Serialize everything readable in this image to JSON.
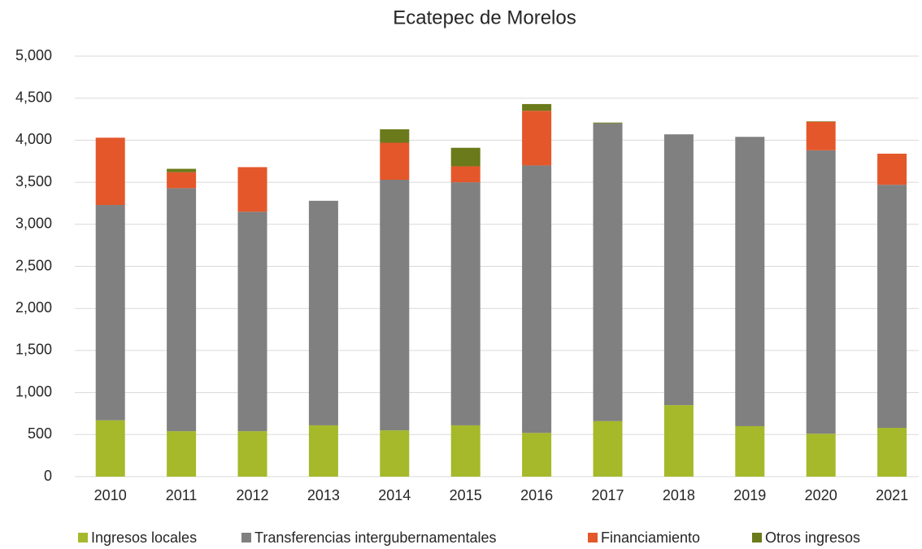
{
  "chart_data": {
    "type": "stacked_bar",
    "title": "Ecatepec de Morelos",
    "categories": [
      "2010",
      "2011",
      "2012",
      "2013",
      "2014",
      "2015",
      "2016",
      "2017",
      "2018",
      "2019",
      "2020",
      "2021"
    ],
    "series": [
      {
        "name": "Ingresos locales",
        "color": "#a5b92a",
        "values": [
          670,
          540,
          540,
          610,
          550,
          610,
          520,
          660,
          850,
          600,
          510,
          580
        ]
      },
      {
        "name": "Transferencias intergubernamentales",
        "color": "#808080",
        "values": [
          2560,
          2890,
          2610,
          2670,
          2980,
          2890,
          3180,
          3540,
          3220,
          3440,
          3370,
          2890
        ]
      },
      {
        "name": "Financiamiento",
        "color": "#e4572a",
        "values": [
          800,
          190,
          530,
          0,
          440,
          190,
          650,
          0,
          0,
          0,
          340,
          370
        ]
      },
      {
        "name": "Otros ingresos",
        "color": "#6b7a1a",
        "values": [
          0,
          40,
          0,
          0,
          160,
          220,
          80,
          10,
          0,
          0,
          5,
          0
        ]
      }
    ],
    "ylim": [
      0,
      5000
    ],
    "yticks": [
      0,
      500,
      {
        "value": 1000,
        "label": "1,000"
      },
      {
        "value": 1500,
        "label": "1,500"
      },
      {
        "value": 2000,
        "label": "2,000"
      },
      {
        "value": 2500,
        "label": "2,500"
      },
      {
        "value": 3000,
        "label": "3,000"
      },
      {
        "value": 3500,
        "label": "3,500"
      },
      {
        "value": 4000,
        "label": "4,000"
      },
      {
        "value": 4500,
        "label": "4,500"
      },
      {
        "value": 5000,
        "label": "5,000"
      }
    ],
    "grid": true,
    "legend": "bottom"
  }
}
